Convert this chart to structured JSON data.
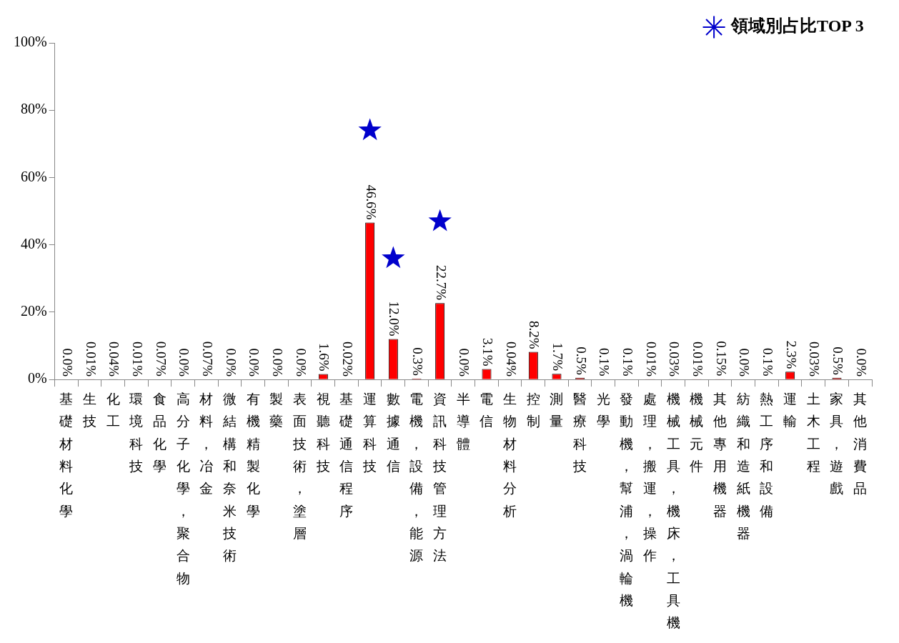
{
  "chart_data": {
    "type": "bar",
    "categories": [
      "基礎材料化學",
      "生技",
      "化工",
      "環境科技",
      "食品化學",
      "高分子化學，聚合物",
      "材料，冶金",
      "微結構和奈米技術",
      "有機精製化學",
      "製藥",
      "表面技術，塗層",
      "視聽科技",
      "基礎通信程序",
      "運算科技",
      "數據通信",
      "電機，設備，能源",
      "資訊科技管理方法",
      "半導體",
      "電信",
      "生物材料分析",
      "控制",
      "測量",
      "醫療科技",
      "光學",
      "發動機，幫浦，渦輪機",
      "處理，搬運，操作",
      "機械工具，機床，工具機",
      "機械元件",
      "其他專用機器",
      "紡織和造紙機器",
      "熱工序和設備",
      "運輸",
      "土木工程",
      "家具，遊戲",
      "其他消費品"
    ],
    "series": [
      {
        "color": "#ff0000",
        "values": [
          0.0,
          0.01,
          0.04,
          0.01,
          0.07,
          0.0,
          0.07,
          0.0,
          0.0,
          0.0,
          0.0,
          1.6,
          0.02,
          46.6,
          12.0,
          0.3,
          22.7,
          0.0,
          3.1,
          0.04,
          8.2,
          1.7,
          0.5,
          0.1,
          0.1,
          0.01,
          0.03,
          0.01,
          0.15,
          0.0,
          0.1,
          2.3,
          0.03,
          0.5,
          0.0
        ],
        "value_labels": [
          "0.0%",
          "0.01%",
          "0.04%",
          "0.01%",
          "0.07%",
          "0.0%",
          "0.07%",
          "0.0%",
          "0.0%",
          "0.0%",
          "0.0%",
          "1.6%",
          "0.02%",
          "46.6%",
          "12.0%",
          "0.3%",
          "22.7%",
          "0.0%",
          "3.1%",
          "0.04%",
          "8.2%",
          "1.7%",
          "0.5%",
          "0.1%",
          "0.1%",
          "0.01%",
          "0.03%",
          "0.01%",
          "0.15%",
          "0.0%",
          "0.1%",
          "2.3%",
          "0.03%",
          "0.5%",
          "0.0%"
        ]
      },
      {
        "type": "scatter",
        "name": "領域別占比TOP 3",
        "color": "#0000cc",
        "marker": "star",
        "x": [
          "運算科技",
          "數據通信",
          "資訊科技管理方法"
        ],
        "values": [
          74,
          36,
          47
        ]
      }
    ],
    "ylim": [
      0,
      100
    ],
    "yticks": [
      {
        "value": 0,
        "label": "0%"
      },
      {
        "value": 20,
        "label": "20%"
      },
      {
        "value": 40,
        "label": "40%"
      },
      {
        "value": 60,
        "label": "60%"
      },
      {
        "value": 80,
        "label": "80%"
      },
      {
        "value": 100,
        "label": "100%"
      }
    ],
    "grid": false,
    "legend": "top right"
  }
}
